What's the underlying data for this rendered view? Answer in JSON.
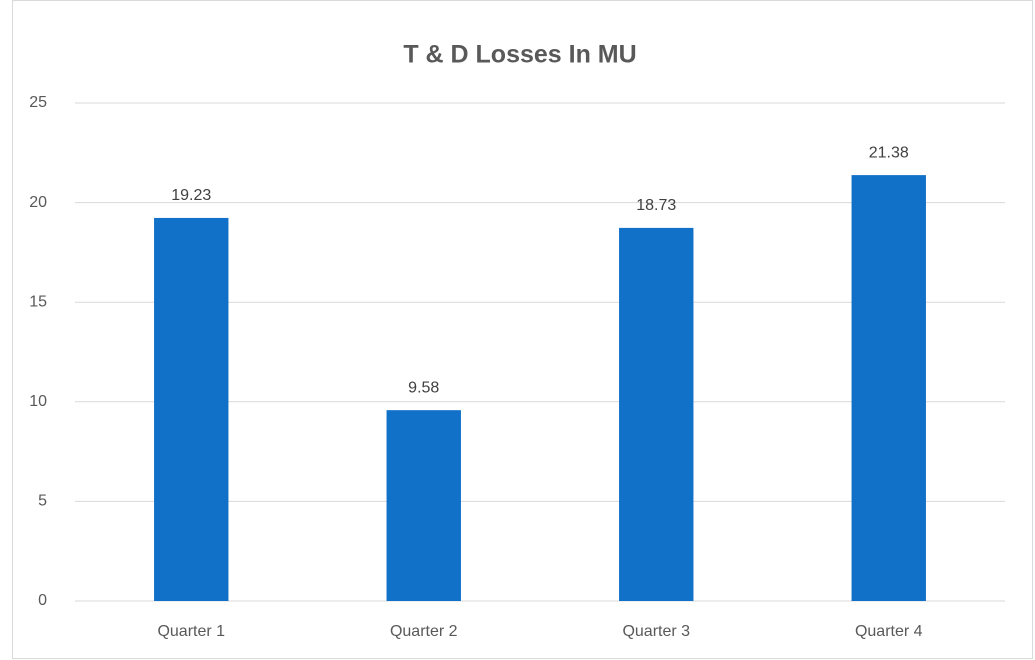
{
  "chart_data": {
    "type": "bar",
    "title": "T & D Losses In MU",
    "categories": [
      "Quarter 1",
      "Quarter 2",
      "Quarter 3",
      "Quarter 4"
    ],
    "values": [
      19.23,
      9.58,
      18.73,
      21.38
    ],
    "color": "#1170c8",
    "ylim": [
      0,
      25
    ],
    "yticks": [
      0,
      5,
      10,
      15,
      20,
      25
    ],
    "grid": true
  }
}
